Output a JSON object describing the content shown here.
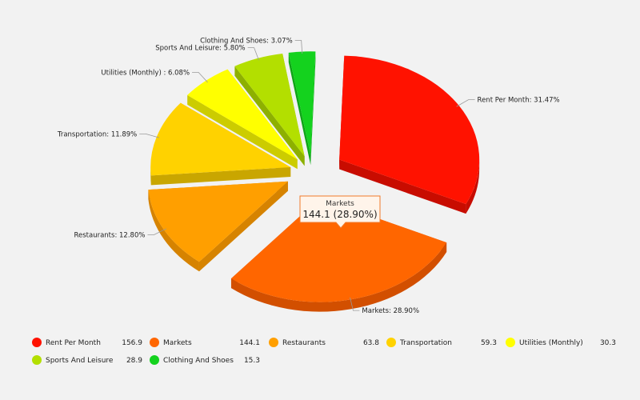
{
  "chart_data": {
    "type": "pie",
    "title": "",
    "slices": [
      {
        "name": "Rent Per Month",
        "value": 156.9,
        "percent": 31.47,
        "label": "Rent Per Month: 31.47%",
        "legend_value": "156.9",
        "color": "#ff1200",
        "side": "#c80c00"
      },
      {
        "name": "Markets",
        "value": 144.1,
        "percent": 28.9,
        "label": "Markets: 28.90%",
        "legend_value": "144.1",
        "color": "#ff6600",
        "side": "#d24f00"
      },
      {
        "name": "Restaurants",
        "value": 63.8,
        "percent": 12.8,
        "label": "Restaurants: 12.80%",
        "legend_value": "63.8",
        "color": "#ff9f00",
        "side": "#d68300"
      },
      {
        "name": "Transportation",
        "value": 59.3,
        "percent": 11.89,
        "label": "Transportation: 11.89%",
        "legend_value": "59.3",
        "color": "#ffd200",
        "side": "#c9a600"
      },
      {
        "name": "Utilities (Monthly)",
        "value": 30.3,
        "percent": 6.08,
        "label": "Utilities (Monthly) : 6.08%",
        "legend_value": "30.3",
        "color": "#ffff00",
        "side": "#cccc00"
      },
      {
        "name": "Sports And Leisure",
        "value": 28.9,
        "percent": 5.8,
        "label": "Sports And Leisure: 5.80%",
        "legend_value": "28.9",
        "color": "#b3df00",
        "side": "#8db000"
      },
      {
        "name": "Clothing And Shoes",
        "value": 15.3,
        "percent": 3.07,
        "label": "Clothing And Shoes: 3.07%",
        "legend_value": "15.3",
        "color": "#14d21e",
        "side": "#0ea516"
      }
    ],
    "legend_placement": "bottom",
    "tooltip": {
      "title": "Markets",
      "value": "144.1 (28.90%)"
    }
  }
}
